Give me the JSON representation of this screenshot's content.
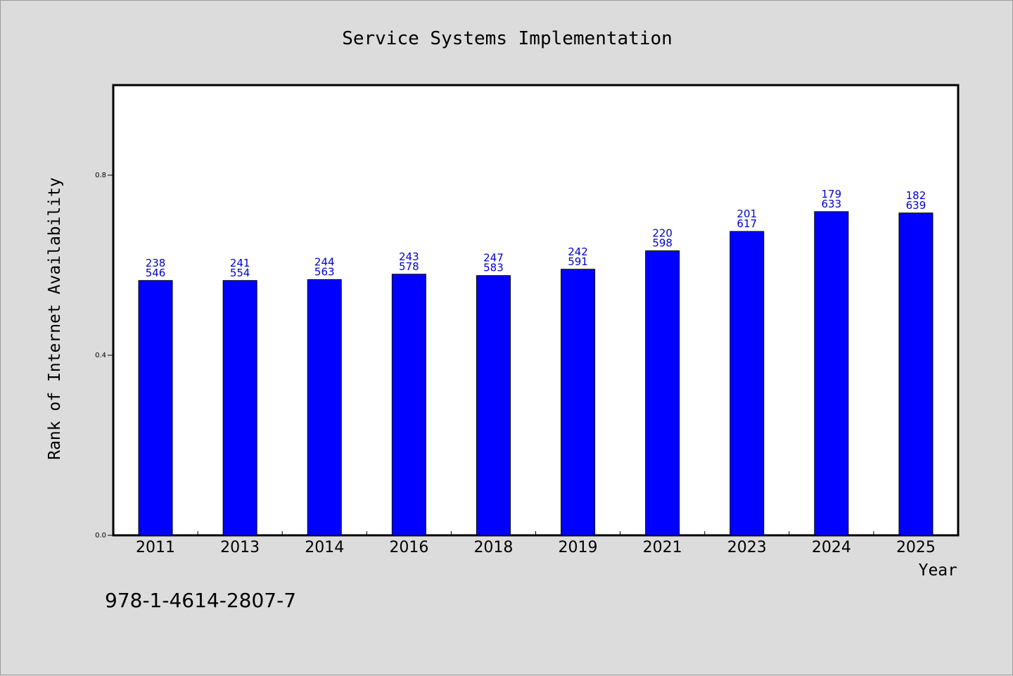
{
  "chart_data": {
    "type": "bar",
    "title": "Service Systems Implementation",
    "xlabel": "Year",
    "ylabel": "Rank of Internet Availability",
    "categories": [
      "2011",
      "2013",
      "2014",
      "2016",
      "2018",
      "2019",
      "2021",
      "2023",
      "2024",
      "2025"
    ],
    "values": [
      0.566,
      0.566,
      0.568,
      0.58,
      0.577,
      0.591,
      0.632,
      0.675,
      0.719,
      0.716
    ],
    "annotations_top": [
      "238",
      "241",
      "244",
      "243",
      "247",
      "242",
      "220",
      "201",
      "179",
      "182"
    ],
    "annotations_bottom": [
      "546",
      "554",
      "563",
      "578",
      "583",
      "591",
      "598",
      "617",
      "633",
      "639"
    ],
    "ylim": [
      0,
      1.0
    ],
    "yticks": [
      0.0,
      0.4,
      0.8
    ],
    "ytick_labels": [
      "0.0",
      "0.4",
      "0.8"
    ],
    "grid": false,
    "legend": "none",
    "bar_color": "#0000ff",
    "annotation_color": "#0000cc"
  },
  "footer": {
    "isbn": "978-1-4614-2807-7"
  }
}
